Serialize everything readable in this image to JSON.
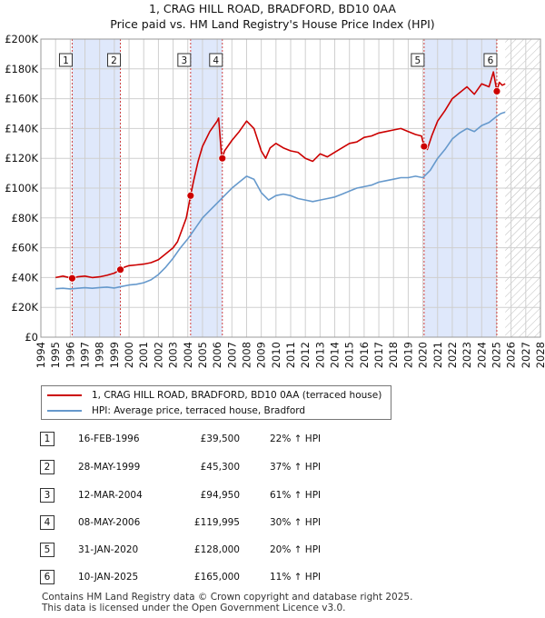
{
  "title_line1": "1, CRAG HILL ROAD, BRADFORD, BD10 0AA",
  "title_line2": "Price paid vs. HM Land Registry's House Price Index (HPI)",
  "colors": {
    "property": "#cc0000",
    "hpi": "#6699cc",
    "shade": "#dfe8fb",
    "hatch": "#bbbbbb",
    "vline": "#d04040"
  },
  "chart_data": {
    "type": "line",
    "xlim": [
      1994,
      2028
    ],
    "ylim": [
      0,
      200000
    ],
    "y_ticks": [
      0,
      20000,
      40000,
      60000,
      80000,
      100000,
      120000,
      140000,
      160000,
      180000,
      200000
    ],
    "y_tick_labels": [
      "£0",
      "£20K",
      "£40K",
      "£60K",
      "£80K",
      "£100K",
      "£120K",
      "£140K",
      "£160K",
      "£180K",
      "£200K"
    ],
    "x_tick_labels": [
      "1994",
      "1995",
      "1996",
      "1997",
      "1998",
      "1999",
      "2000",
      "2001",
      "2002",
      "2003",
      "2004",
      "2005",
      "2006",
      "2007",
      "2008",
      "2009",
      "2010",
      "2011",
      "2012",
      "2013",
      "2014",
      "2015",
      "2016",
      "2017",
      "2018",
      "2019",
      "2020",
      "2021",
      "2022",
      "2023",
      "2024",
      "2025",
      "2026",
      "2027",
      "2028"
    ],
    "data_start": 1995.0,
    "data_end": 2025.6,
    "hatch_from": 2025.6,
    "series": [
      {
        "name": "1, CRAG HILL ROAD, BRADFORD, BD10 0AA (terraced house)",
        "color": "#cc0000",
        "x": [
          1995.0,
          1995.5,
          1996.13,
          1996.5,
          1997.0,
          1997.5,
          1998.0,
          1998.5,
          1999.0,
          1999.41,
          1999.7,
          2000.0,
          2000.5,
          2001.0,
          2001.5,
          2002.0,
          2002.5,
          2003.0,
          2003.3,
          2003.6,
          2003.9,
          2004.19,
          2004.4,
          2004.7,
          2005.0,
          2005.5,
          2006.0,
          2006.1,
          2006.3,
          2006.35,
          2006.5,
          2007.0,
          2007.5,
          2008.0,
          2008.5,
          2009.0,
          2009.3,
          2009.6,
          2010.0,
          2010.5,
          2011.0,
          2011.5,
          2012.0,
          2012.5,
          2013.0,
          2013.5,
          2014.0,
          2014.5,
          2015.0,
          2015.5,
          2016.0,
          2016.5,
          2017.0,
          2017.5,
          2018.0,
          2018.5,
          2019.0,
          2019.5,
          2019.9,
          2020.08,
          2020.3,
          2020.6,
          2021.0,
          2021.5,
          2022.0,
          2022.5,
          2023.0,
          2023.5,
          2024.0,
          2024.5,
          2024.8,
          2025.03,
          2025.2,
          2025.4,
          2025.6
        ],
        "y": [
          40000,
          41000,
          39500,
          40500,
          41000,
          40000,
          40500,
          41500,
          43000,
          45300,
          47000,
          48000,
          48500,
          49000,
          50000,
          52000,
          56000,
          60000,
          64000,
          72000,
          80000,
          94950,
          105000,
          118000,
          128000,
          138000,
          145000,
          147000,
          121000,
          119995,
          125000,
          132000,
          138000,
          145000,
          140000,
          125000,
          120000,
          127000,
          130000,
          127000,
          125000,
          124000,
          120000,
          118000,
          123000,
          121000,
          124000,
          127000,
          130000,
          131000,
          134000,
          135000,
          137000,
          138000,
          139000,
          140000,
          138000,
          136000,
          135000,
          128000,
          126000,
          135000,
          145000,
          152000,
          160000,
          164000,
          168000,
          163000,
          170000,
          168000,
          178000,
          165000,
          171000,
          169000,
          170000
        ]
      },
      {
        "name": "HPI: Average price, terraced house, Bradford",
        "color": "#6699cc",
        "x": [
          1995.0,
          1995.5,
          1996.0,
          1996.5,
          1997.0,
          1997.5,
          1998.0,
          1998.5,
          1999.0,
          1999.5,
          2000.0,
          2000.5,
          2001.0,
          2001.5,
          2002.0,
          2002.5,
          2003.0,
          2003.5,
          2004.0,
          2004.5,
          2005.0,
          2005.5,
          2006.0,
          2006.5,
          2007.0,
          2007.5,
          2008.0,
          2008.5,
          2009.0,
          2009.5,
          2010.0,
          2010.5,
          2011.0,
          2011.5,
          2012.0,
          2012.5,
          2013.0,
          2013.5,
          2014.0,
          2014.5,
          2015.0,
          2015.5,
          2016.0,
          2016.5,
          2017.0,
          2017.5,
          2018.0,
          2018.5,
          2019.0,
          2019.5,
          2020.0,
          2020.5,
          2021.0,
          2021.5,
          2022.0,
          2022.5,
          2023.0,
          2023.5,
          2024.0,
          2024.5,
          2025.0,
          2025.3,
          2025.6
        ],
        "y": [
          32500,
          32800,
          32400,
          32800,
          33200,
          32800,
          33300,
          33600,
          33000,
          34000,
          35000,
          35500,
          36500,
          38500,
          42000,
          47000,
          53000,
          60000,
          66000,
          73000,
          80000,
          85000,
          90000,
          95000,
          100000,
          104000,
          108000,
          106000,
          97000,
          92000,
          95000,
          96000,
          95000,
          93000,
          92000,
          91000,
          92000,
          93000,
          94000,
          96000,
          98000,
          100000,
          101000,
          102000,
          104000,
          105000,
          106000,
          107000,
          107000,
          108000,
          107000,
          112000,
          120000,
          126000,
          133000,
          137000,
          140000,
          138000,
          142000,
          144000,
          148000,
          150000,
          151000
        ]
      }
    ],
    "sales": [
      {
        "label": "1",
        "x": 1996.13,
        "y": 39500,
        "date": "16-FEB-1996",
        "price": "£39,500",
        "hpi": "22% ↑ HPI"
      },
      {
        "label": "2",
        "x": 1999.41,
        "y": 45300,
        "date": "28-MAY-1999",
        "price": "£45,300",
        "hpi": "37% ↑ HPI"
      },
      {
        "label": "3",
        "x": 2004.19,
        "y": 94950,
        "date": "12-MAR-2004",
        "price": "£94,950",
        "hpi": "61% ↑ HPI"
      },
      {
        "label": "4",
        "x": 2006.35,
        "y": 119995,
        "date": "08-MAY-2006",
        "price": "£119,995",
        "hpi": "30% ↑ HPI"
      },
      {
        "label": "5",
        "x": 2020.08,
        "y": 128000,
        "date": "31-JAN-2020",
        "price": "£128,000",
        "hpi": "20% ↑ HPI"
      },
      {
        "label": "6",
        "x": 2025.03,
        "y": 165000,
        "date": "10-JAN-2025",
        "price": "£165,000",
        "hpi": "11% ↑ HPI"
      }
    ],
    "shaded_ranges": [
      [
        1996.13,
        1999.41
      ],
      [
        2004.19,
        2006.35
      ],
      [
        2020.08,
        2025.03
      ]
    ]
  },
  "legend": {
    "property_label": "1, CRAG HILL ROAD, BRADFORD, BD10 0AA (terraced house)",
    "hpi_label": "HPI: Average price, terraced house, Bradford"
  },
  "table": [
    {
      "num": "1",
      "date": "16-FEB-1996",
      "price": "£39,500",
      "hpi": "22% ↑ HPI"
    },
    {
      "num": "2",
      "date": "28-MAY-1999",
      "price": "£45,300",
      "hpi": "37% ↑ HPI"
    },
    {
      "num": "3",
      "date": "12-MAR-2004",
      "price": "£94,950",
      "hpi": "61% ↑ HPI"
    },
    {
      "num": "4",
      "date": "08-MAY-2006",
      "price": "£119,995",
      "hpi": "30% ↑ HPI"
    },
    {
      "num": "5",
      "date": "31-JAN-2020",
      "price": "£128,000",
      "hpi": "20% ↑ HPI"
    },
    {
      "num": "6",
      "date": "10-JAN-2025",
      "price": "£165,000",
      "hpi": "11% ↑ HPI"
    }
  ],
  "footer": {
    "line1": "Contains HM Land Registry data © Crown copyright and database right 2025.",
    "line2": "This data is licensed under the Open Government Licence v3.0."
  }
}
